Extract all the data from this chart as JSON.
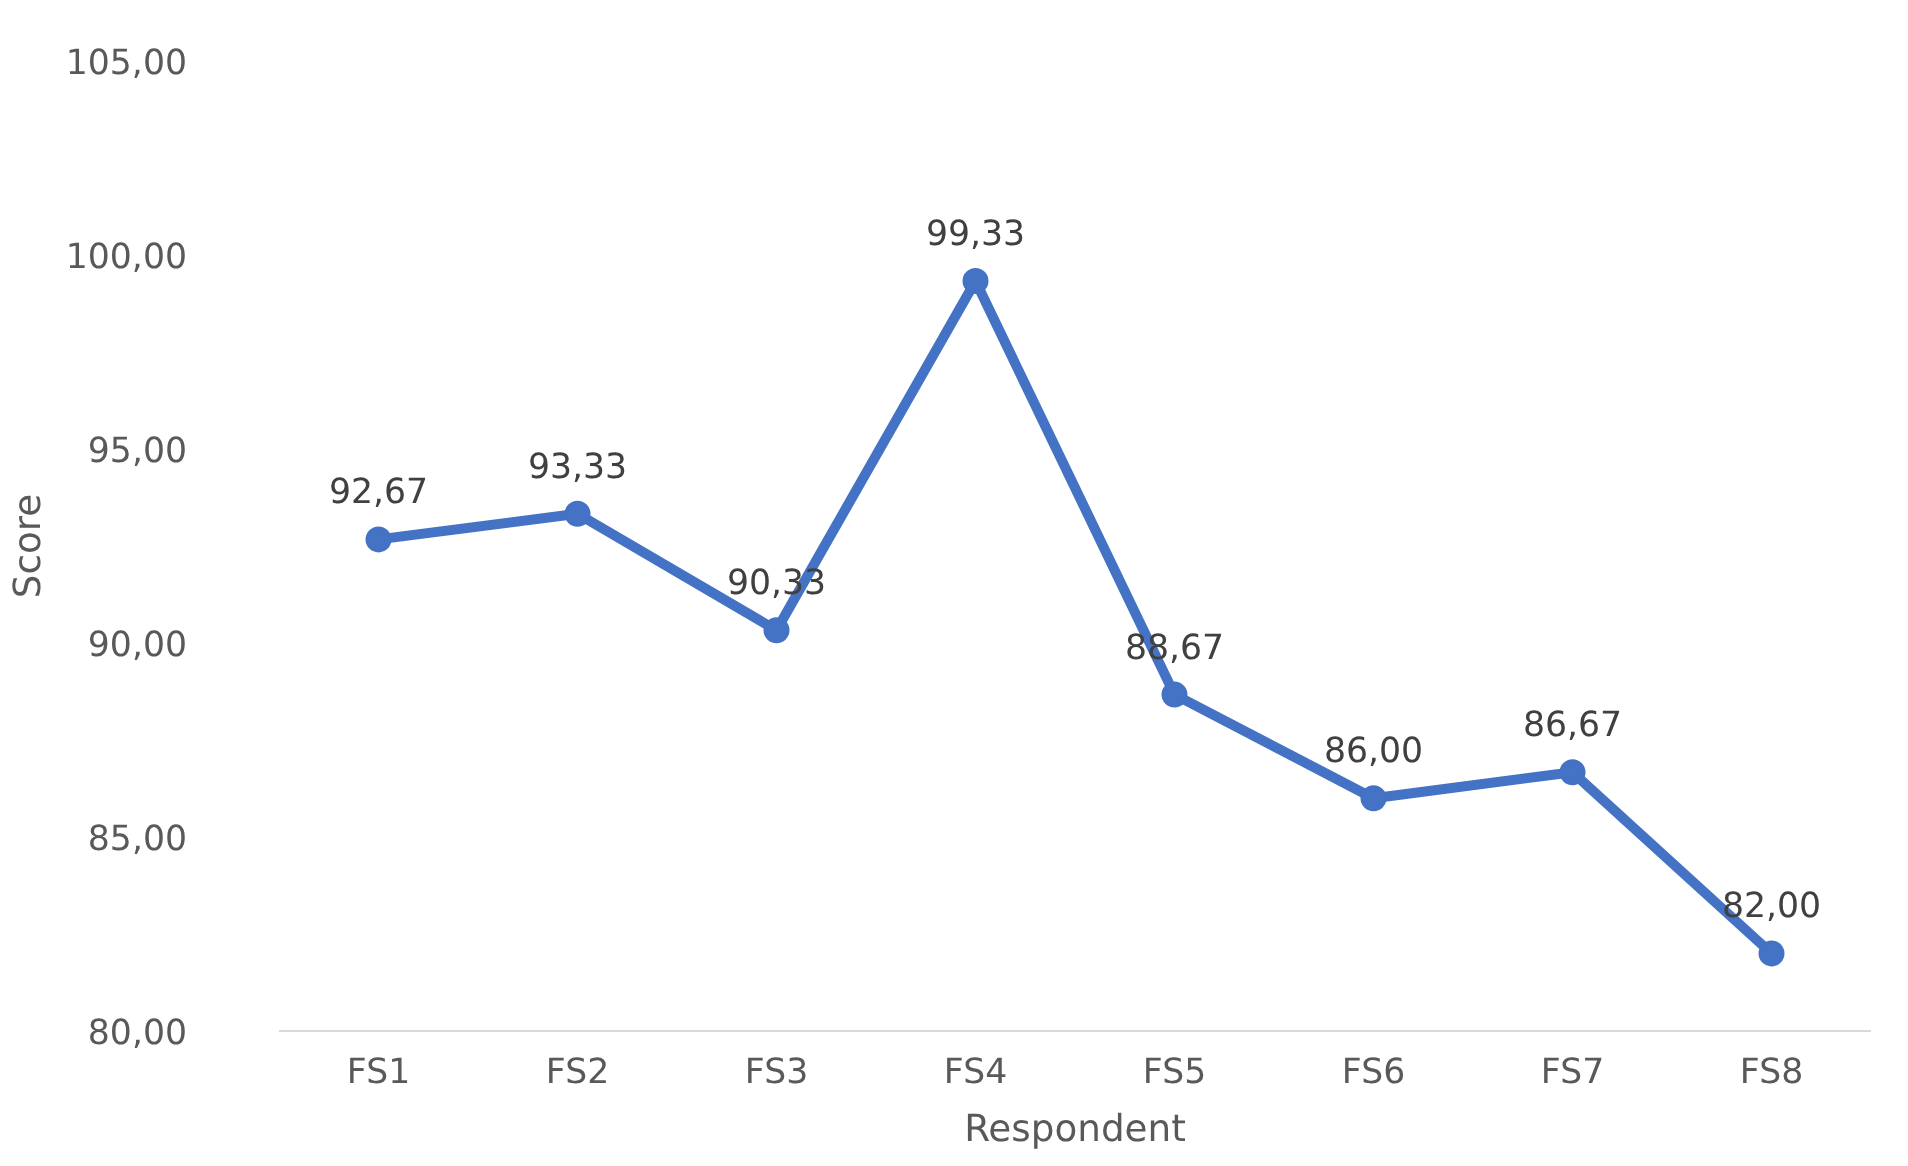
{
  "chart_data": {
    "type": "line",
    "xlabel": "Respondent",
    "ylabel": "Score",
    "categories": [
      "FS1",
      "FS2",
      "FS3",
      "FS4",
      "FS5",
      "FS6",
      "FS7",
      "FS8"
    ],
    "series": [
      {
        "color": "#4472c4",
        "values": [
          92.67,
          93.33,
          90.33,
          99.33,
          88.67,
          86.0,
          86.67,
          82.0
        ],
        "value_labels": [
          "92,67",
          "93,33",
          "90,33",
          "99,33",
          "88,67",
          "86,00",
          "86,67",
          "82,00"
        ]
      }
    ],
    "ylim": [
      80,
      105
    ],
    "yticks": [
      {
        "value": 80,
        "label": "80,00"
      },
      {
        "value": 85,
        "label": "85,00"
      },
      {
        "value": 90,
        "label": "90,00"
      },
      {
        "value": 95,
        "label": "95,00"
      },
      {
        "value": 100,
        "label": "100,00"
      },
      {
        "value": 105,
        "label": "105,00"
      }
    ],
    "grid": false,
    "marker": "circle",
    "line_style": "solid"
  }
}
